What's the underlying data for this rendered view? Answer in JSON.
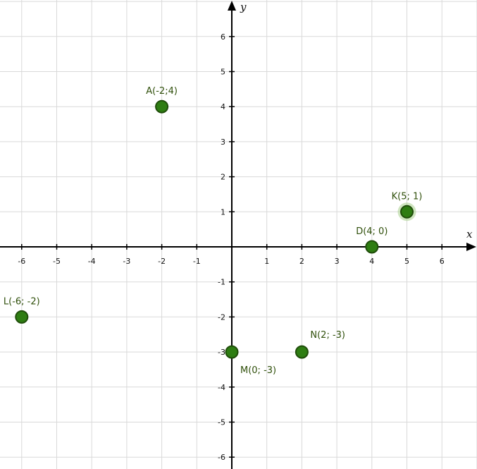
{
  "axes": {
    "x_name": "x",
    "y_name": "y",
    "x_range": [
      -6.6,
      7
    ],
    "y_range": [
      -6.3,
      7
    ],
    "x_ticks": [
      -6,
      -5,
      -4,
      -3,
      -2,
      -1,
      1,
      2,
      3,
      4,
      5,
      6
    ],
    "y_ticks": [
      -6,
      -5,
      -4,
      -3,
      -2,
      -1,
      1,
      2,
      3,
      4,
      5,
      6
    ],
    "grid_step": 1,
    "grid": true
  },
  "colors": {
    "background": "#ffffff",
    "grid": "#d9d9d9",
    "axis": "#000000",
    "point_fill": "#2e7d12",
    "point_stroke": "#1f4d0a",
    "point_label": "#2f4f0a",
    "highlight_ring": "#a8d08d"
  },
  "points": [
    {
      "id": "A",
      "label": "A(-2;4)",
      "x": -2,
      "y": 4,
      "label_pos": "above",
      "highlighted": false
    },
    {
      "id": "K",
      "label": "K(5; 1)",
      "x": 5,
      "y": 1,
      "label_pos": "above",
      "highlighted": true
    },
    {
      "id": "D",
      "label": "D(4; 0)",
      "x": 4,
      "y": 0,
      "label_pos": "above",
      "highlighted": false
    },
    {
      "id": "L",
      "label": "L(-6; -2)",
      "x": -6,
      "y": -2,
      "label_pos": "above",
      "highlighted": false
    },
    {
      "id": "M",
      "label": "M(0; -3)",
      "x": 0,
      "y": -3,
      "label_pos": "below-right",
      "highlighted": false
    },
    {
      "id": "N",
      "label": "N(2; -3)",
      "x": 2,
      "y": -3,
      "label_pos": "above-right",
      "highlighted": false
    }
  ]
}
